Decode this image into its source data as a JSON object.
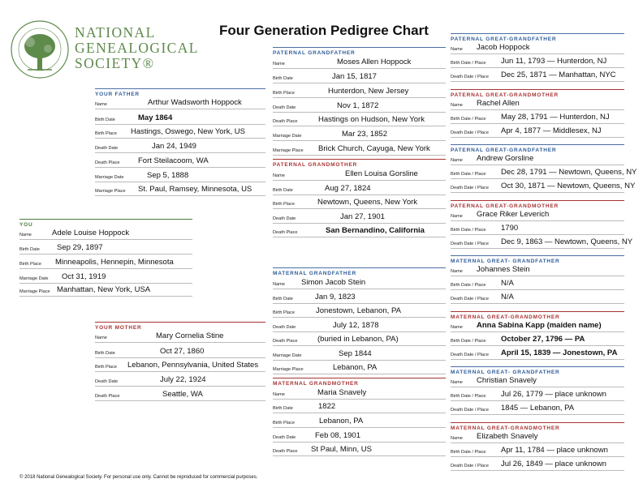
{
  "title": "Four Generation Pedigree Chart",
  "logo": {
    "line1": "NATIONAL",
    "line2": "GENEALOGICAL",
    "line3": "SOCIETY®",
    "seal_text": "National Genealogical Society · Founded 1903"
  },
  "footer": "© 2018 National Genealogical Society. For personal use only. Cannot be reproduced for commercial purposes.",
  "colors": {
    "blue": "#2f5b99",
    "red": "#a83232",
    "green": "#4a7a3a"
  },
  "labels": {
    "name": "Name",
    "birth_date": "Birth Date",
    "birth_place": "Birth Place",
    "death_date": "Death Date",
    "death_place": "Death Place",
    "marriage_date": "Marriage Date",
    "marriage_place": "Marriage Place",
    "birth_dp": "Birth Date / Place",
    "death_dp": "Death Date / Place"
  },
  "you": {
    "header": "YOU",
    "name": "Adele Louise Hoppock",
    "birth_date": "Sep 29, 1897",
    "birth_place": "Minneapolis, Hennepin, Minnesota",
    "marriage_date": "Oct 31, 1919",
    "marriage_place": "Manhattan, New York, USA"
  },
  "father": {
    "header": "YOUR FATHER",
    "name": "Arthur Wadsworth Hoppock",
    "birth_date": "May 1864",
    "birth_place": "Hastings, Oswego, New York, US",
    "death_date": "Jan 24, 1949",
    "death_place": "Fort Steilacoom, WA",
    "marriage_date": "Sep 5, 1888",
    "marriage_place": "St. Paul, Ramsey, Minnesota, US"
  },
  "mother": {
    "header": "YOUR MOTHER",
    "name": "Mary Cornelia Stine",
    "birth_date": "Oct 27, 1860",
    "birth_place": "Lebanon, Pennsylvania, United States",
    "death_date": "July 22, 1924",
    "death_place": "Seattle, WA"
  },
  "pat_gf": {
    "header": "PATERNAL GRANDFATHER",
    "name": "Moses Allen Hoppock",
    "birth_date": "Jan 15, 1817",
    "birth_place": "Hunterdon, New Jersey",
    "death_date": "Nov 1, 1872",
    "death_place": "Hastings on Hudson, New York",
    "marriage_date": "Mar 23, 1852",
    "marriage_place": "Brick Church, Cayuga, New York"
  },
  "pat_gm": {
    "header": "PATERNAL GRANDMOTHER",
    "name": "Ellen Louisa Gorsline",
    "birth_date": "Aug 27, 1824",
    "birth_place": "Newtown, Queens, New York",
    "death_date": "Jan 27, 1901",
    "death_place": "San Bernandino, California"
  },
  "mat_gf": {
    "header": "MATERNAL GRANDFATHER",
    "name": "Simon Jacob Stein",
    "birth_date": "Jan 9, 1823",
    "birth_place": "Jonestown, Lebanon, PA",
    "death_date": "July 12, 1878",
    "death_place": "(buried in Lebanon, PA)",
    "marriage_date": "Sep 1844",
    "marriage_place": "Lebanon, PA"
  },
  "mat_gm": {
    "header": "MATERNAL GRANDMOTHER",
    "name": "Maria Snavely",
    "birth_date": "1822",
    "birth_place": "Lebanon, PA",
    "death_date": "Feb 08, 1901",
    "death_place": "St Paul, Minn, US"
  },
  "ggp": [
    {
      "header": "PATERNAL GREAT-GRANDFATHER",
      "name": "Jacob Hoppock",
      "birth": "Jun 11, 1793 — Hunterdon, NJ",
      "death": "Dec 25, 1871 — Manhattan, NYC"
    },
    {
      "header": "PATERNAL GREAT-GRANDMOTHER",
      "name": "Rachel Allen",
      "birth": "May 28, 1791 — Hunterdon, NJ",
      "death": "Apr 4, 1877 — Middlesex, NJ"
    },
    {
      "header": "PATERNAL GREAT-GRANDFATHER",
      "name": "Andrew Gorsline",
      "birth": "Dec 28, 1791 — Newtown, Queens, NY",
      "death": "Oct 30, 1871 — Newtown, Queens, NY"
    },
    {
      "header": "PATERNAL GREAT-GRANDMOTHER",
      "name": "Grace Riker Leverich",
      "birth": "1790",
      "death": "Dec 9, 1863 — Newtown, Queens, NY"
    },
    {
      "header": "MATERNAL GREAT- GRANDFATHER",
      "name": "Johannes Stein",
      "birth": "N/A",
      "death": "N/A"
    },
    {
      "header": "MATERNAL GREAT-GRANDMOTHER",
      "name": "Anna Sabina Kapp (maiden name)",
      "birth": "October 27, 1796 — PA",
      "death": "April 15, 1839 — Jonestown, PA"
    },
    {
      "header": "MATERNAL GREAT- GRANDFATHER",
      "name": "Christian Snavely",
      "birth": "Jul 26, 1779 — place unknown",
      "death": "1845 — Lebanon, PA"
    },
    {
      "header": "MATERNAL GREAT-GRANDMOTHER",
      "name": "Elizabeth Snavely",
      "birth": "Apr 11, 1784 — place unknown",
      "death": "Jul 26, 1849 — place unknown"
    }
  ]
}
